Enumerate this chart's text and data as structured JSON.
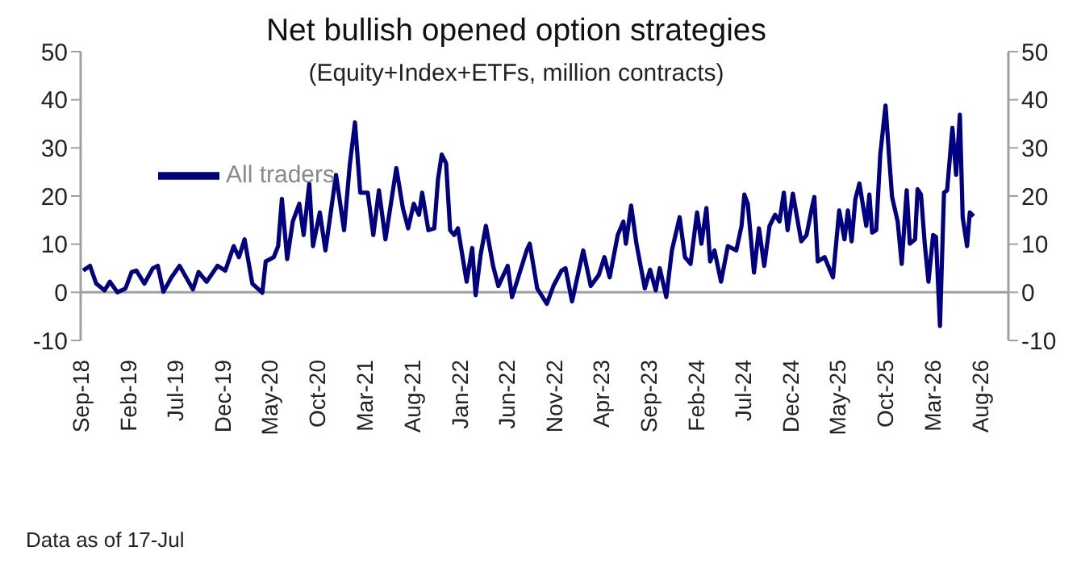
{
  "chart_data": {
    "type": "line",
    "title": "Net bullish opened option strategies",
    "subtitle": "(Equity+Index+ETFs, million contracts)",
    "annotations": [
      "Data as of 17-Jul"
    ],
    "x": [
      "2018-09-09",
      "2018-10-01",
      "2018-10-21",
      "2018-11-17",
      "2018-12-04",
      "2018-12-28",
      "2019-01-23",
      "2019-02-12",
      "2019-02-27",
      "2019-03-25",
      "2019-04-21",
      "2019-05-07",
      "2019-05-25",
      "2019-06-20",
      "2019-07-16",
      "2019-08-28",
      "2019-09-15",
      "2019-10-11",
      "2019-11-15",
      "2019-12-10",
      "2020-01-06",
      "2020-01-23",
      "2020-02-10",
      "2020-03-06",
      "2020-04-07",
      "2020-04-18",
      "2020-05-14",
      "2020-05-28",
      "2020-06-09",
      "2020-06-26",
      "2020-07-14",
      "2020-08-04",
      "2020-08-18",
      "2020-09-05",
      "2020-09-17",
      "2020-10-09",
      "2020-10-27",
      "2020-11-30",
      "2020-12-26",
      "2021-01-13",
      "2021-01-30",
      "2021-02-16",
      "2021-03-12",
      "2021-03-30",
      "2021-04-17",
      "2021-05-08",
      "2021-06-12",
      "2021-07-03",
      "2021-07-20",
      "2021-08-07",
      "2021-08-24",
      "2021-09-03",
      "2021-09-23",
      "2021-10-12",
      "2021-10-24",
      "2021-11-05",
      "2021-11-19",
      "2021-12-02",
      "2021-12-15",
      "2021-12-27",
      "2022-01-24",
      "2022-02-11",
      "2022-02-22",
      "2022-03-10",
      "2022-03-27",
      "2022-04-19",
      "2022-05-06",
      "2022-06-05",
      "2022-06-19",
      "2022-07-09",
      "2022-08-05",
      "2022-08-15",
      "2022-09-08",
      "2022-10-09",
      "2022-10-30",
      "2022-11-25",
      "2022-12-08",
      "2022-12-29",
      "2023-02-03",
      "2023-02-27",
      "2023-03-25",
      "2023-04-12",
      "2023-04-29",
      "2023-05-25",
      "2023-06-12",
      "2023-06-20",
      "2023-07-07",
      "2023-07-24",
      "2023-08-20",
      "2023-09-06",
      "2023-09-24",
      "2023-10-07",
      "2023-10-28",
      "2023-11-15",
      "2023-12-10",
      "2023-12-27",
      "2024-01-14",
      "2024-02-04",
      "2024-02-18",
      "2024-03-05",
      "2024-03-17",
      "2024-03-31",
      "2024-04-21",
      "2024-05-13",
      "2024-06-09",
      "2024-06-26",
      "2024-07-05",
      "2024-07-16",
      "2024-08-05",
      "2024-08-21",
      "2024-09-07",
      "2024-09-24",
      "2024-10-12",
      "2024-10-26",
      "2024-11-09",
      "2024-11-21",
      "2024-12-08",
      "2025-01-04",
      "2025-01-21",
      "2025-02-07",
      "2025-02-15",
      "2025-02-26",
      "2025-03-20",
      "2025-04-16",
      "2025-05-06",
      "2025-05-23",
      "2025-06-03",
      "2025-06-15",
      "2025-06-27",
      "2025-07-10",
      "2025-08-01",
      "2025-08-11",
      "2025-08-20",
      "2025-09-02",
      "2025-09-15",
      "2025-10-02",
      "2025-10-15",
      "2025-10-23",
      "2025-11-10",
      "2025-11-23",
      "2025-12-09",
      "2025-12-19",
      "2026-01-05",
      "2026-01-13",
      "2026-01-24",
      "2026-02-05",
      "2026-02-17",
      "2026-03-04",
      "2026-03-13",
      "2026-03-26",
      "2026-04-08",
      "2026-04-18",
      "2026-05-05",
      "2026-05-17",
      "2026-05-29",
      "2026-06-07",
      "2026-06-21",
      "2026-06-30",
      "2026-07-12"
    ],
    "series": [
      {
        "name": "All traders",
        "color": "#000080",
        "values": [
          4.5,
          5.5,
          1.8,
          0.4,
          2.2,
          0,
          0.8,
          4.2,
          4.5,
          1.8,
          5,
          5.5,
          0.1,
          3.1,
          5.5,
          0.6,
          4.2,
          2.2,
          5.5,
          4.5,
          9.6,
          7.3,
          11,
          1.8,
          -0.1,
          6.4,
          7.3,
          9.6,
          19.4,
          6.9,
          14.7,
          18.4,
          11.9,
          22.6,
          9.6,
          16.6,
          8.7,
          24.4,
          12.9,
          26.3,
          35.3,
          20.7,
          20.7,
          11.9,
          21.2,
          11,
          25.8,
          17.5,
          13.3,
          18.4,
          16.1,
          20.7,
          12.9,
          13.3,
          23.5,
          28.6,
          26.8,
          12.9,
          11.9,
          13.3,
          2.2,
          9.2,
          -0.6,
          7.8,
          13.8,
          5.5,
          1.3,
          5.5,
          -1,
          3.1,
          8.7,
          10.1,
          0.8,
          -2.4,
          1.3,
          4.5,
          5,
          -1.9,
          8.7,
          1.3,
          3.6,
          7.3,
          3.1,
          11.9,
          14.7,
          10.1,
          18,
          10.1,
          0.8,
          4.7,
          0.4,
          5,
          -1,
          8.7,
          15.6,
          7.3,
          5.9,
          16.6,
          10.1,
          17.5,
          6.4,
          8.7,
          2.2,
          9.6,
          8.7,
          13.8,
          20.3,
          18.4,
          4.1,
          13.3,
          5.5,
          13.8,
          16.1,
          14.7,
          20.7,
          12.9,
          20.5,
          10.6,
          11.9,
          17.5,
          19.8,
          6.4,
          7.3,
          3.1,
          17,
          11,
          17,
          10.6,
          19.4,
          22.6,
          13.8,
          20.3,
          12.4,
          12.9,
          28.6,
          38.8,
          26.8,
          19.8,
          14.7,
          5.9,
          21.2,
          10.1,
          11,
          21.4,
          20.3,
          10.1,
          2.2,
          11.9,
          11.5,
          -7,
          20.7,
          21.2,
          34.2,
          24.4,
          36.9,
          15.6,
          9.6,
          16.6,
          15.8
        ]
      }
    ],
    "xlim": [
      "2018-09-01",
      "2026-11-01"
    ],
    "xticks": [
      {
        "value": "2018-09",
        "label": "Sep-18"
      },
      {
        "value": "2019-02",
        "label": "Feb-19"
      },
      {
        "value": "2019-07",
        "label": "Jul-19"
      },
      {
        "value": "2019-12",
        "label": "Dec-19"
      },
      {
        "value": "2020-05",
        "label": "May-20"
      },
      {
        "value": "2020-10",
        "label": "Oct-20"
      },
      {
        "value": "2021-03",
        "label": "Mar-21"
      },
      {
        "value": "2021-08",
        "label": "Aug-21"
      },
      {
        "value": "2022-01",
        "label": "Jan-22"
      },
      {
        "value": "2022-06",
        "label": "Jun-22"
      },
      {
        "value": "2022-11",
        "label": "Nov-22"
      },
      {
        "value": "2023-04",
        "label": "Apr-23"
      },
      {
        "value": "2023-09",
        "label": "Sep-23"
      },
      {
        "value": "2024-02",
        "label": "Feb-24"
      },
      {
        "value": "2024-07",
        "label": "Jul-24"
      },
      {
        "value": "2024-12",
        "label": "Dec-24"
      },
      {
        "value": "2025-05",
        "label": "May-25"
      },
      {
        "value": "2025-10",
        "label": "Oct-25"
      },
      {
        "value": "2026-03",
        "label": "Mar-26"
      },
      {
        "value": "2026-08",
        "label": "Aug-26"
      }
    ],
    "ylim": [
      -10,
      50
    ],
    "yticks": [
      -10,
      0,
      10,
      20,
      30,
      40,
      50
    ],
    "y2lim": [
      -10,
      50
    ],
    "y2ticks": [
      -10,
      0,
      10,
      20,
      30,
      40,
      50
    ],
    "ref_lines": [
      {
        "axis": "y",
        "value": 0,
        "color": "#a0a0a0"
      }
    ],
    "legend": "top left",
    "grid": false,
    "marker": "none",
    "line_style": "solid"
  }
}
